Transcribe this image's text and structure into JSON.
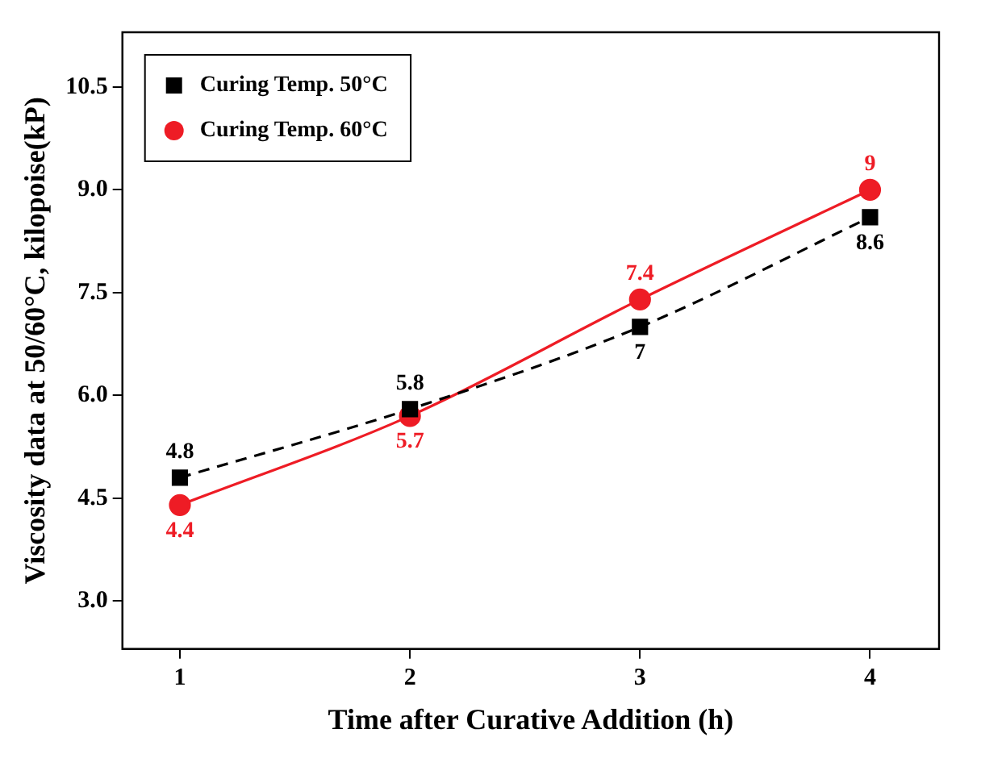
{
  "chart_data": {
    "type": "line",
    "xlabel": "Time after Curative Addition (h)",
    "ylabel": "Viscosity data at 50/60°C, kilopoise(kP)",
    "x": [
      1,
      2,
      3,
      4
    ],
    "series": [
      {
        "name": "Curing Temp. 50°C",
        "color": "#000000",
        "values": [
          4.8,
          5.8,
          7,
          8.6
        ],
        "marker": "square",
        "line_style": "dashed"
      },
      {
        "name": "Curing Temp. 60°C",
        "color": "#ee1c25",
        "values": [
          4.4,
          5.7,
          7.4,
          9
        ],
        "marker": "circle",
        "line_style": "solid"
      }
    ],
    "xlim": [
      0.75,
      4.3
    ],
    "xticks": [
      1,
      2,
      3,
      4
    ],
    "ylim": [
      2.3,
      11.3
    ],
    "yticks": [
      {
        "value": 3,
        "label": "3.0"
      },
      {
        "value": 4.5,
        "label": "4.5"
      },
      {
        "value": 6,
        "label": "6.0"
      },
      {
        "value": 7.5,
        "label": "7.5"
      },
      {
        "value": 9,
        "label": "9.0"
      },
      {
        "value": 10.5,
        "label": "10.5"
      }
    ],
    "grid": false,
    "legend": "top left",
    "data_labels": true
  }
}
